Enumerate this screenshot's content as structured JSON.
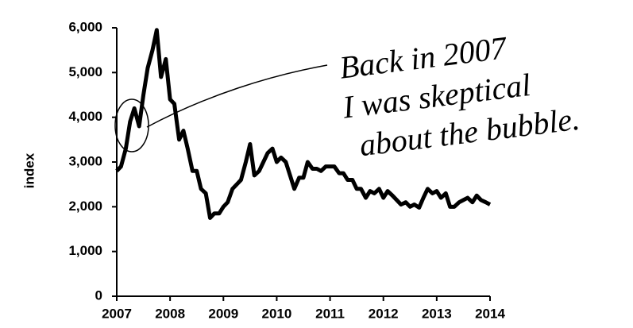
{
  "chart_data": {
    "type": "line",
    "ylabel": "index",
    "color": "#000000",
    "annotation": [
      "Back in 2007",
      "I was skeptical",
      "about the bubble."
    ],
    "xlim": [
      2007,
      2014
    ],
    "xticks": [
      2007,
      2008,
      2009,
      2010,
      2011,
      2012,
      2013,
      2014
    ],
    "ylim": [
      0,
      6000
    ],
    "yticks": [
      0,
      {
        "value": 1000,
        "label": "1,000"
      },
      {
        "value": 2000,
        "label": "2,000"
      },
      {
        "value": 3000,
        "label": "3,000"
      },
      {
        "value": 4000,
        "label": "4,000"
      },
      {
        "value": 5000,
        "label": "5,000"
      },
      {
        "value": 6000,
        "label": "6,000"
      }
    ],
    "x": [
      2007.0,
      2007.08,
      2007.17,
      2007.25,
      2007.33,
      2007.42,
      2007.5,
      2007.58,
      2007.67,
      2007.75,
      2007.83,
      2007.92,
      2008.0,
      2008.08,
      2008.17,
      2008.25,
      2008.33,
      2008.42,
      2008.5,
      2008.58,
      2008.67,
      2008.75,
      2008.83,
      2008.92,
      2009.0,
      2009.08,
      2009.17,
      2009.25,
      2009.33,
      2009.42,
      2009.5,
      2009.58,
      2009.67,
      2009.75,
      2009.83,
      2009.92,
      2010.0,
      2010.08,
      2010.17,
      2010.25,
      2010.33,
      2010.42,
      2010.5,
      2010.58,
      2010.67,
      2010.75,
      2010.83,
      2010.92,
      2011.0,
      2011.08,
      2011.17,
      2011.25,
      2011.33,
      2011.42,
      2011.5,
      2011.58,
      2011.67,
      2011.75,
      2011.83,
      2011.92,
      2012.0,
      2012.08,
      2012.17,
      2012.25,
      2012.33,
      2012.42,
      2012.5,
      2012.58,
      2012.67,
      2012.75,
      2012.83,
      2012.92,
      2013.0,
      2013.08,
      2013.17,
      2013.25,
      2013.33,
      2013.42,
      2013.5,
      2013.58,
      2013.67,
      2013.75,
      2013.83,
      2013.92,
      2014.0
    ],
    "values": [
      2800,
      2900,
      3300,
      3900,
      4200,
      3800,
      4500,
      5100,
      5500,
      5950,
      4900,
      5300,
      4400,
      4300,
      3500,
      3700,
      3300,
      2800,
      2800,
      2400,
      2300,
      1750,
      1850,
      1850,
      2000,
      2100,
      2400,
      2500,
      2600,
      3000,
      3400,
      2700,
      2800,
      3000,
      3200,
      3300,
      3000,
      3100,
      3000,
      2700,
      2400,
      2650,
      2650,
      3000,
      2850,
      2850,
      2800,
      2900,
      2900,
      2900,
      2750,
      2750,
      2600,
      2600,
      2400,
      2400,
      2200,
      2350,
      2300,
      2400,
      2200,
      2350,
      2250,
      2150,
      2050,
      2100,
      2000,
      2050,
      1980,
      2200,
      2400,
      2300,
      2350,
      2200,
      2300,
      2000,
      2000,
      2100,
      2150,
      2200,
      2100,
      2250,
      2150,
      2100,
      2050
    ]
  }
}
